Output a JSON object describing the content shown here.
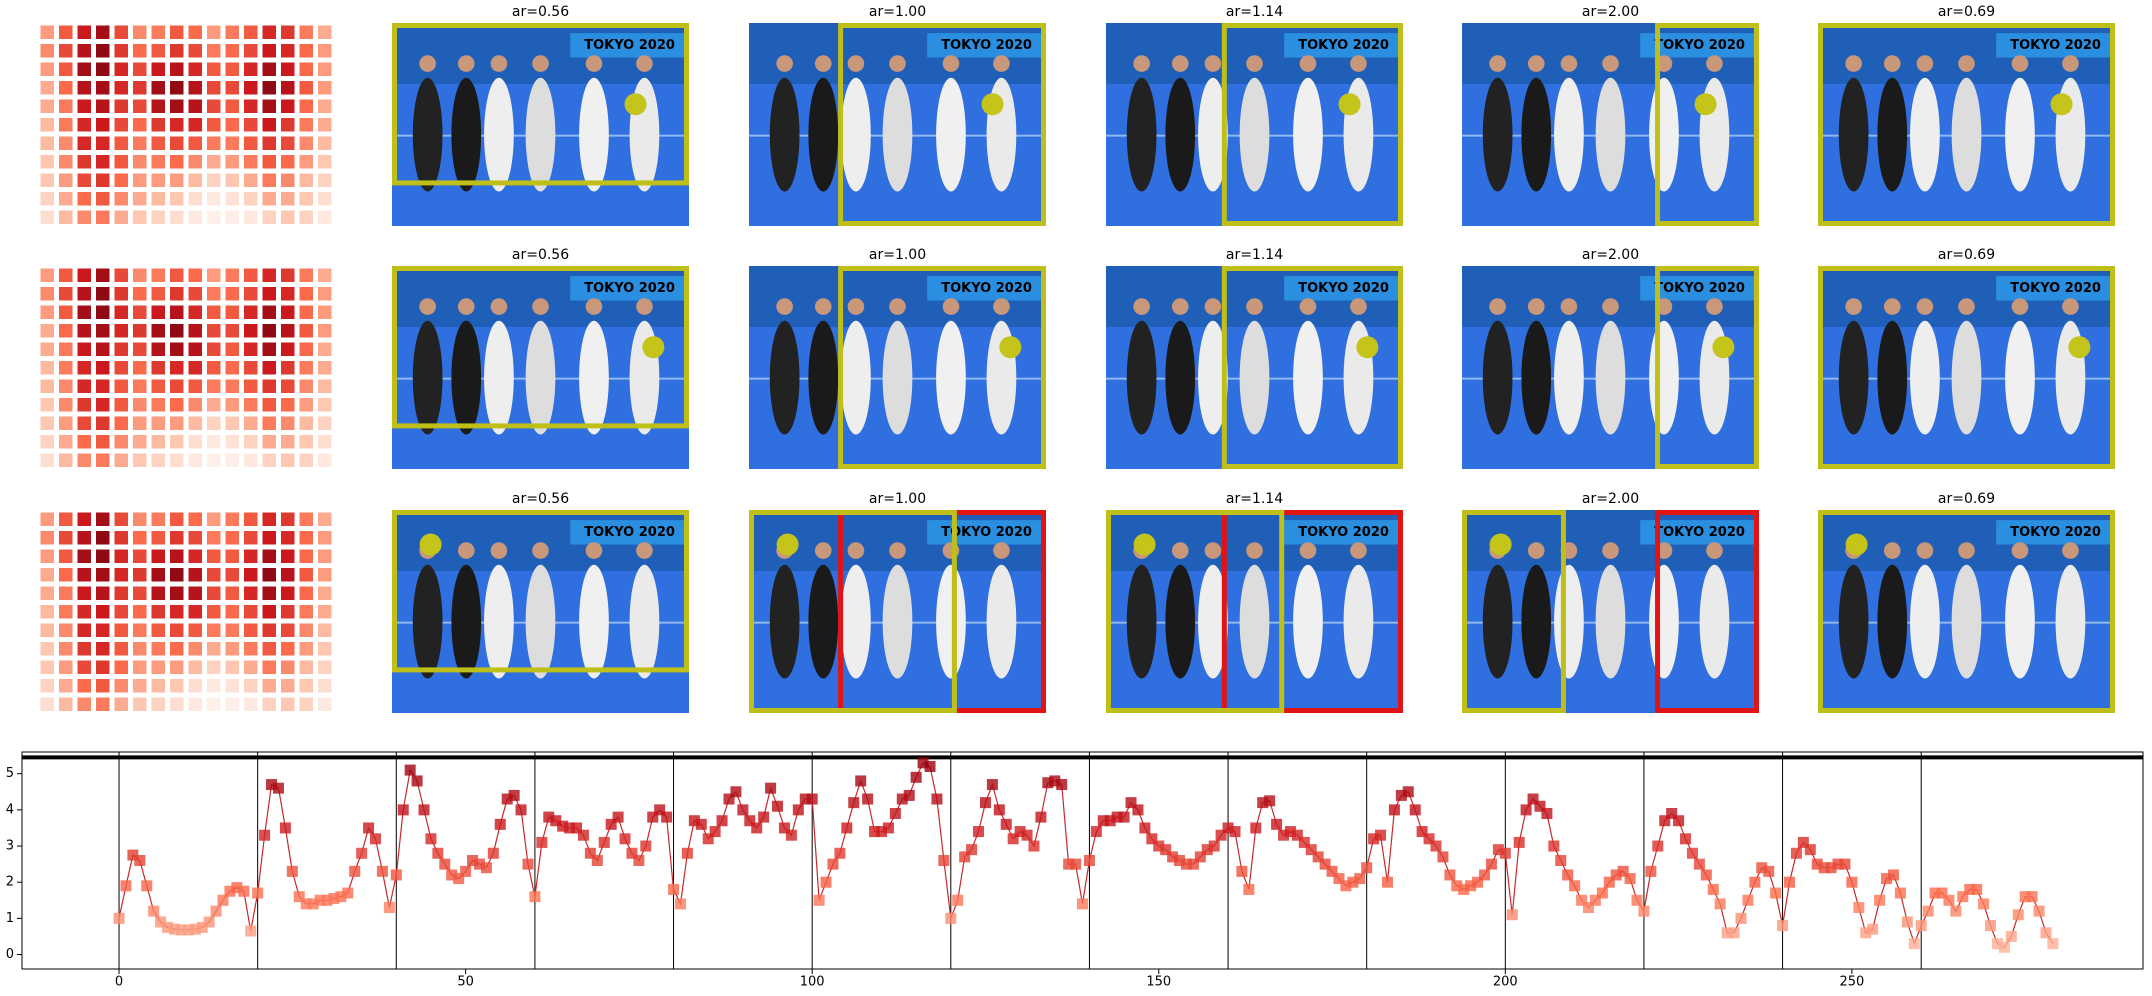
{
  "panels": {
    "banner": "TOKYO 2020",
    "rows": [
      {
        "titles": [
          "ar=0.56",
          "ar=1.00",
          "ar=1.14",
          "ar=2.00",
          "ar=0.69"
        ]
      },
      {
        "titles": [
          "ar=0.56",
          "ar=1.00",
          "ar=1.14",
          "ar=2.00",
          "ar=0.69"
        ]
      },
      {
        "titles": [
          "ar=0.56",
          "ar=1.00",
          "ar=1.14",
          "ar=2.00",
          "ar=0.69"
        ]
      }
    ]
  },
  "heatmap": {
    "colors": [
      "#fff5f0",
      "#fcbba1",
      "#fb6a4a",
      "#cb181d",
      "#67000d"
    ],
    "values": [
      [
        0.35,
        0.55,
        0.75,
        0.85,
        0.6,
        0.4,
        0.45,
        0.55,
        0.5,
        0.35,
        0.45,
        0.55,
        0.7,
        0.65,
        0.45,
        0.3
      ],
      [
        0.4,
        0.6,
        0.8,
        0.9,
        0.65,
        0.5,
        0.55,
        0.65,
        0.6,
        0.45,
        0.5,
        0.6,
        0.75,
        0.7,
        0.5,
        0.35
      ],
      [
        0.35,
        0.55,
        0.85,
        0.9,
        0.7,
        0.6,
        0.75,
        0.8,
        0.7,
        0.55,
        0.55,
        0.7,
        0.85,
        0.75,
        0.5,
        0.35
      ],
      [
        0.3,
        0.5,
        0.8,
        0.85,
        0.7,
        0.65,
        0.85,
        0.9,
        0.8,
        0.6,
        0.6,
        0.75,
        0.9,
        0.8,
        0.55,
        0.35
      ],
      [
        0.3,
        0.45,
        0.75,
        0.8,
        0.65,
        0.6,
        0.8,
        0.85,
        0.8,
        0.6,
        0.55,
        0.7,
        0.85,
        0.75,
        0.5,
        0.3
      ],
      [
        0.25,
        0.45,
        0.7,
        0.75,
        0.6,
        0.5,
        0.65,
        0.7,
        0.7,
        0.55,
        0.5,
        0.6,
        0.75,
        0.65,
        0.45,
        0.3
      ],
      [
        0.25,
        0.4,
        0.7,
        0.7,
        0.55,
        0.45,
        0.55,
        0.6,
        0.55,
        0.45,
        0.45,
        0.55,
        0.65,
        0.6,
        0.4,
        0.25
      ],
      [
        0.2,
        0.4,
        0.65,
        0.7,
        0.55,
        0.4,
        0.45,
        0.5,
        0.4,
        0.3,
        0.35,
        0.45,
        0.55,
        0.5,
        0.35,
        0.2
      ],
      [
        0.2,
        0.35,
        0.6,
        0.65,
        0.5,
        0.35,
        0.35,
        0.35,
        0.25,
        0.15,
        0.2,
        0.3,
        0.45,
        0.4,
        0.25,
        0.15
      ],
      [
        0.15,
        0.3,
        0.5,
        0.55,
        0.4,
        0.3,
        0.25,
        0.2,
        0.1,
        0.05,
        0.08,
        0.15,
        0.3,
        0.3,
        0.2,
        0.1
      ],
      [
        0.1,
        0.25,
        0.4,
        0.45,
        0.3,
        0.2,
        0.15,
        0.1,
        0.05,
        0.02,
        0.03,
        0.05,
        0.15,
        0.2,
        0.15,
        0.05
      ]
    ]
  },
  "chart_data": {
    "type": "line",
    "line_color": "#c8282a",
    "marker_colors": [
      "#fcbba1",
      "#fb6a4a",
      "#cb181d",
      "#99000d"
    ],
    "xlim": [
      -14,
      292
    ],
    "ylim": [
      -0.4,
      5.6
    ],
    "xticks": [
      0,
      50,
      100,
      150,
      200,
      250
    ],
    "yticks": [
      0,
      1,
      2,
      3,
      4,
      5
    ],
    "vlines": [
      0,
      20,
      40,
      60,
      80,
      100,
      120,
      140,
      160,
      180,
      200,
      220,
      240,
      260
    ],
    "hline": 5.45,
    "x": [
      0,
      1,
      2,
      3,
      4,
      5,
      6,
      7,
      8,
      9,
      10,
      11,
      12,
      13,
      14,
      15,
      16,
      17,
      18,
      19,
      20,
      21,
      22,
      23,
      24,
      25,
      26,
      27,
      28,
      29,
      30,
      31,
      32,
      33,
      34,
      35,
      36,
      37,
      38,
      39,
      40,
      41,
      42,
      43,
      44,
      45,
      46,
      47,
      48,
      49,
      50,
      51,
      52,
      53,
      54,
      55,
      56,
      57,
      58,
      59,
      60,
      61,
      62,
      63,
      64,
      65,
      66,
      67,
      68,
      69,
      70,
      71,
      72,
      73,
      74,
      75,
      76,
      77,
      78,
      79,
      80,
      81,
      82,
      83,
      84,
      85,
      86,
      87,
      88,
      89,
      90,
      91,
      92,
      93,
      94,
      95,
      96,
      97,
      98,
      99,
      100,
      101,
      102,
      103,
      104,
      105,
      106,
      107,
      108,
      109,
      110,
      111,
      112,
      113,
      114,
      115,
      116,
      117,
      118,
      119,
      120,
      121,
      122,
      123,
      124,
      125,
      126,
      127,
      128,
      129,
      130,
      131,
      132,
      133,
      134,
      135,
      136,
      137,
      138,
      139,
      140,
      141,
      142,
      143,
      144,
      145,
      146,
      147,
      148,
      149,
      150,
      151,
      152,
      153,
      154,
      155,
      156,
      157,
      158,
      159,
      160,
      161,
      162,
      163,
      164,
      165,
      166,
      167,
      168,
      169,
      170,
      171,
      172,
      173,
      174,
      175,
      176,
      177,
      178,
      179,
      180,
      181,
      182,
      183,
      184,
      185,
      186,
      187,
      188,
      189,
      190,
      191,
      192,
      193,
      194,
      195,
      196,
      197,
      198,
      199,
      200,
      201,
      202,
      203,
      204,
      205,
      206,
      207,
      208,
      209,
      210,
      211,
      212,
      213,
      214,
      215,
      216,
      217,
      218,
      219,
      220,
      221,
      222,
      223,
      224,
      225,
      226,
      227,
      228,
      229,
      230,
      231,
      232,
      233,
      234,
      235,
      236,
      237,
      238,
      239,
      240,
      241,
      242,
      243,
      244,
      245,
      246,
      247,
      248,
      249,
      250,
      251,
      252,
      253,
      254,
      255,
      256,
      257,
      258,
      259,
      260,
      261,
      262,
      263,
      264,
      265,
      266,
      267,
      268,
      269,
      270,
      271,
      272,
      273,
      274,
      275,
      276,
      277,
      278,
      279
    ],
    "values": [
      1.0,
      1.9,
      2.75,
      2.6,
      1.9,
      1.2,
      0.9,
      0.75,
      0.7,
      0.68,
      0.68,
      0.7,
      0.75,
      0.9,
      1.2,
      1.5,
      1.75,
      1.85,
      1.75,
      0.65,
      1.7,
      3.3,
      4.7,
      4.6,
      3.5,
      2.3,
      1.6,
      1.4,
      1.4,
      1.5,
      1.5,
      1.55,
      1.6,
      1.7,
      2.3,
      2.8,
      3.5,
      3.2,
      2.3,
      1.3,
      2.2,
      4.0,
      5.1,
      4.8,
      4.0,
      3.2,
      2.8,
      2.5,
      2.2,
      2.1,
      2.3,
      2.6,
      2.5,
      2.4,
      2.8,
      3.6,
      4.3,
      4.4,
      4.0,
      2.5,
      1.6,
      3.1,
      3.8,
      3.7,
      3.55,
      3.5,
      3.5,
      3.3,
      2.8,
      2.6,
      3.1,
      3.6,
      3.8,
      3.2,
      2.8,
      2.6,
      3.0,
      3.8,
      4.0,
      3.8,
      1.8,
      1.4,
      2.8,
      3.7,
      3.6,
      3.2,
      3.4,
      3.7,
      4.3,
      4.5,
      4.0,
      3.7,
      3.5,
      3.8,
      4.6,
      4.1,
      3.5,
      3.3,
      4.0,
      4.3,
      4.3,
      1.5,
      2.0,
      2.5,
      2.8,
      3.5,
      4.2,
      4.8,
      4.3,
      3.4,
      3.4,
      3.5,
      3.9,
      4.3,
      4.4,
      4.9,
      5.3,
      5.2,
      4.3,
      2.6,
      1.0,
      1.5,
      2.7,
      2.9,
      3.4,
      4.2,
      4.7,
      4.0,
      3.6,
      3.2,
      3.4,
      3.3,
      3.0,
      3.8,
      4.75,
      4.8,
      4.7,
      2.5,
      2.5,
      1.4,
      2.6,
      3.4,
      3.7,
      3.7,
      3.8,
      3.8,
      4.2,
      4.0,
      3.5,
      3.2,
      3.0,
      2.9,
      2.7,
      2.6,
      2.5,
      2.5,
      2.7,
      2.9,
      3.0,
      3.3,
      3.5,
      3.4,
      2.3,
      1.8,
      3.5,
      4.2,
      4.25,
      3.6,
      3.3,
      3.4,
      3.3,
      3.1,
      2.9,
      2.7,
      2.5,
      2.3,
      2.1,
      1.9,
      2.0,
      2.1,
      2.4,
      3.2,
      3.3,
      2.0,
      4.0,
      4.4,
      4.5,
      4.0,
      3.4,
      3.2,
      3.0,
      2.7,
      2.2,
      1.9,
      1.8,
      1.9,
      2.0,
      2.2,
      2.5,
      2.9,
      2.8,
      1.1,
      3.1,
      4.0,
      4.3,
      4.1,
      3.9,
      3.0,
      2.6,
      2.2,
      1.9,
      1.5,
      1.3,
      1.5,
      1.7,
      2.0,
      2.2,
      2.3,
      2.1,
      1.5,
      1.2,
      2.3,
      3.0,
      3.7,
      3.9,
      3.7,
      3.2,
      2.8,
      2.5,
      2.2,
      1.8,
      1.4,
      0.6,
      0.6,
      1.0,
      1.5,
      2.0,
      2.4,
      2.3,
      1.7,
      0.8,
      2.0,
      2.8,
      3.1,
      2.9,
      2.5,
      2.4,
      2.4,
      2.5,
      2.5,
      2.0,
      1.3,
      0.6,
      0.7,
      1.5,
      2.1,
      2.2,
      1.7,
      0.9,
      0.3,
      0.8,
      1.2,
      1.7,
      1.7,
      1.5,
      1.2,
      1.6,
      1.8,
      1.8,
      1.4,
      0.8,
      0.3,
      0.2,
      0.5,
      1.1,
      1.6,
      1.6,
      1.2,
      0.6,
      0.3
    ]
  }
}
